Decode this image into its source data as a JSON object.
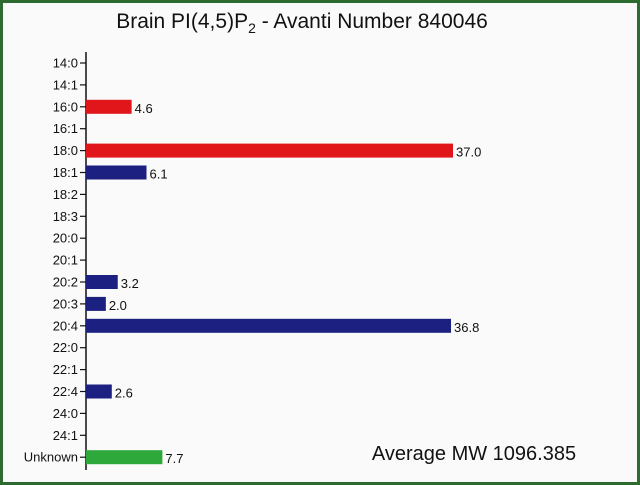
{
  "chart_data": {
    "type": "bar",
    "orientation": "horizontal",
    "title": {
      "main": "Brain PI(4,5)P",
      "subscript": "2",
      "suffix": " - Avanti Number 840046"
    },
    "annotation": "Average MW 1096.385",
    "categories": [
      "14:0",
      "14:1",
      "16:0",
      "16:1",
      "18:0",
      "18:1",
      "18:2",
      "18:3",
      "20:0",
      "20:1",
      "20:2",
      "20:3",
      "20:4",
      "22:0",
      "22:1",
      "22:4",
      "24:0",
      "24:1",
      "Unknown"
    ],
    "values": [
      null,
      null,
      4.6,
      null,
      37.0,
      6.1,
      null,
      null,
      null,
      null,
      3.2,
      2.0,
      36.8,
      null,
      null,
      2.6,
      null,
      null,
      7.7
    ],
    "value_labels": [
      "",
      "",
      "4.6",
      "",
      "37.0",
      "6.1",
      "",
      "",
      "",
      "",
      "3.2",
      "2.0",
      "36.8",
      "",
      "",
      "2.6",
      "",
      "",
      "7.7"
    ],
    "bar_colors": [
      "",
      "",
      "#e0161b",
      "",
      "#e0161b",
      "#1c2080",
      "",
      "",
      "",
      "",
      "#1c2080",
      "#1c2080",
      "#1c2080",
      "",
      "",
      "#1c2080",
      "",
      "",
      "#2ea83a"
    ],
    "xlim": [
      0,
      37.0
    ],
    "grid": false,
    "legend": "none"
  }
}
